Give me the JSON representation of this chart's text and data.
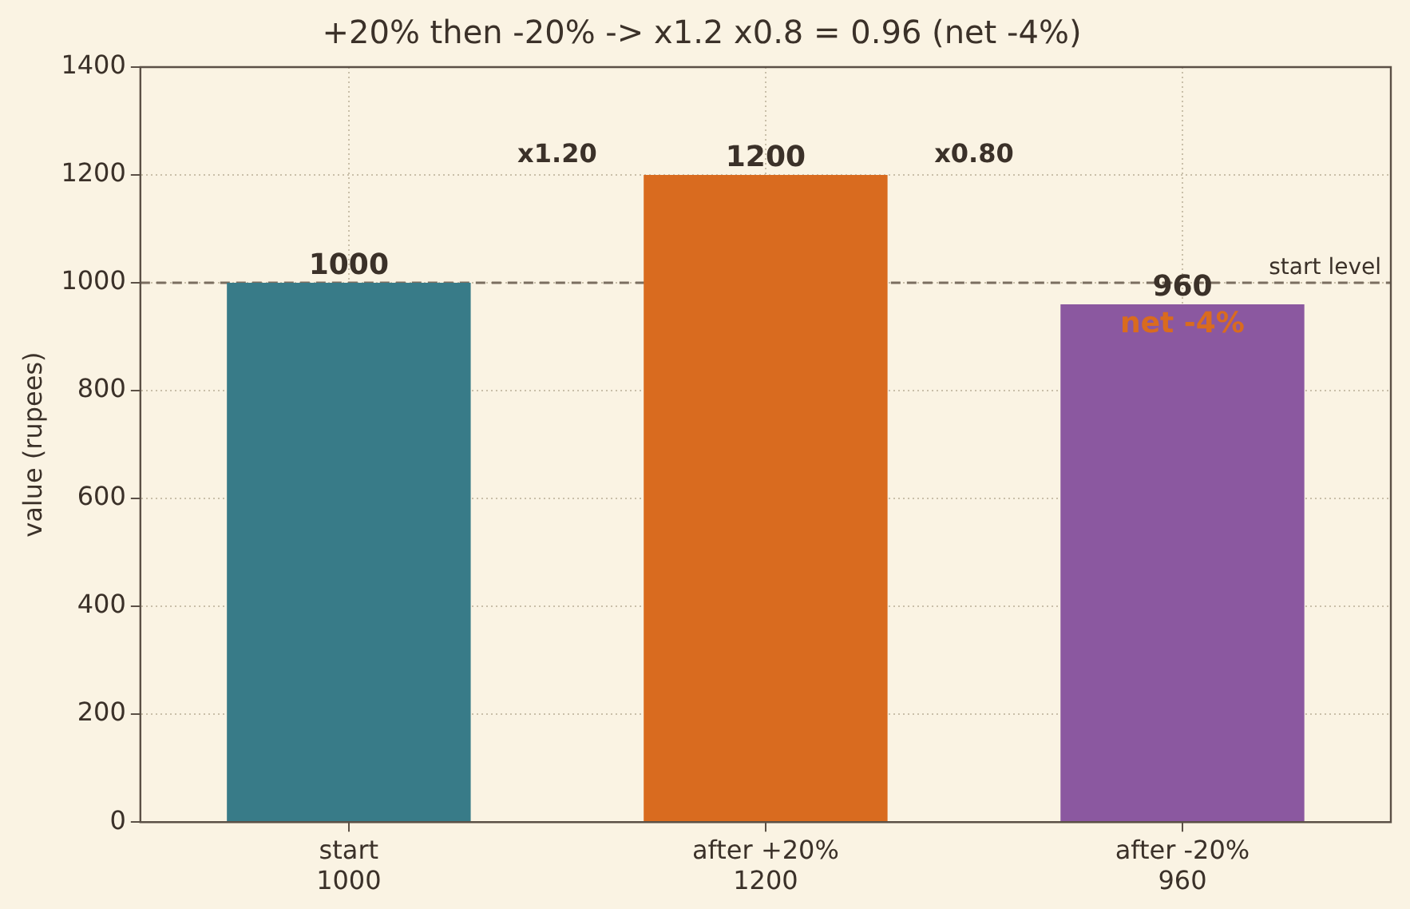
{
  "chart_data": {
    "type": "bar",
    "title": "+20% then -20% -> x1.2 x0.8 = 0.96 (net -4%)",
    "ylabel": "value (rupees)",
    "categories": [
      "start\n1000",
      "after +20%\n1200",
      "after -20%\n960"
    ],
    "values": [
      1000,
      1200,
      960
    ],
    "colors": [
      "#387b88",
      "#d96b1f",
      "#8b58a0"
    ],
    "ylim": [
      0,
      1400
    ],
    "yticks": [
      0,
      200,
      400,
      600,
      800,
      1000,
      1200,
      1400
    ],
    "grid": true,
    "legend": false,
    "data_labels": true,
    "ref_lines": [
      {
        "axis": "y",
        "value": 1000,
        "label": "start level",
        "color": "#7a6e60",
        "line_style": "dashed"
      }
    ],
    "annotations": [
      "x1.20",
      "x0.80",
      "net -4%"
    ]
  }
}
